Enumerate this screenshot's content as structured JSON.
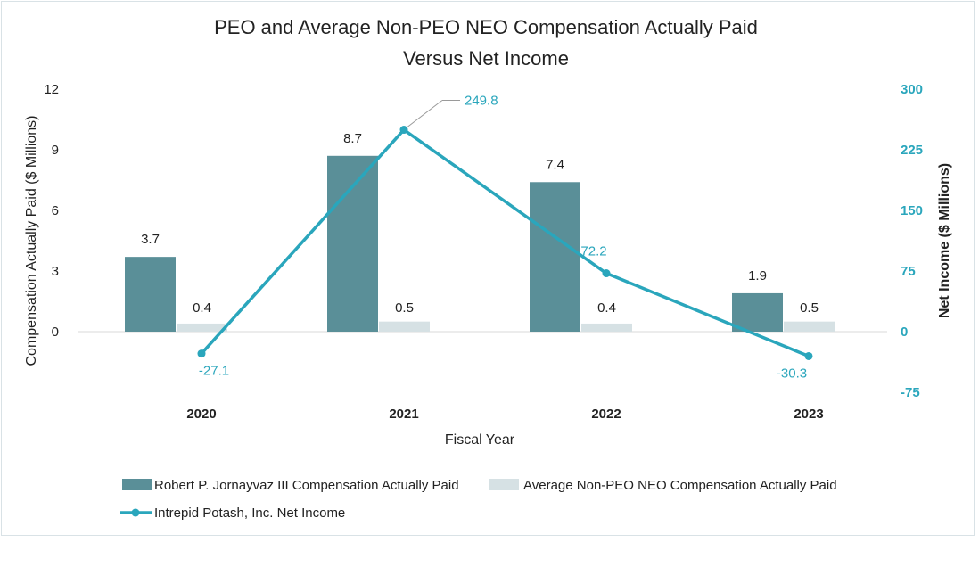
{
  "colors": {
    "peo": "#5a8f98",
    "neo": "#d6e1e4",
    "line": "#2aa6bc",
    "text": "#222222",
    "leader": "#9a9a9a"
  },
  "chart_data": {
    "type": "bar+line",
    "title_line1": "PEO and Average Non-PEO NEO Compensation Actually Paid",
    "title_line2": "Versus Net Income",
    "xlabel": "Fiscal Year",
    "ylabel_left": "Compensation Actually Paid ($ Millions)",
    "ylabel_right": "Net Income ($ Millions)",
    "categories": [
      "2020",
      "2021",
      "2022",
      "2023"
    ],
    "left_axis": {
      "min": 0,
      "max": 12,
      "ticks": [
        "0",
        "3",
        "6",
        "9",
        "12"
      ]
    },
    "right_axis": {
      "min": -75,
      "max": 300,
      "ticks": [
        "-75",
        "0",
        "75",
        "150",
        "225",
        "300"
      ]
    },
    "bar_series": [
      {
        "name": "Robert P. Jornayvaz III Compensation Actually Paid",
        "values": [
          3.7,
          8.7,
          7.4,
          1.9
        ],
        "labels": [
          "3.7",
          "8.7",
          "7.4",
          "1.9"
        ]
      },
      {
        "name": "Average Non-PEO NEO Compensation Actually Paid",
        "values": [
          0.4,
          0.5,
          0.4,
          0.5
        ],
        "labels": [
          "0.4",
          "0.5",
          "0.4",
          "0.5"
        ]
      }
    ],
    "line_series": {
      "name": "Intrepid Potash, Inc. Net Income",
      "values": [
        -27.1,
        249.8,
        72.2,
        -30.3
      ],
      "labels": [
        "-27.1",
        "249.8",
        "72.2",
        "-30.3"
      ]
    },
    "legend_position": "bottom"
  }
}
